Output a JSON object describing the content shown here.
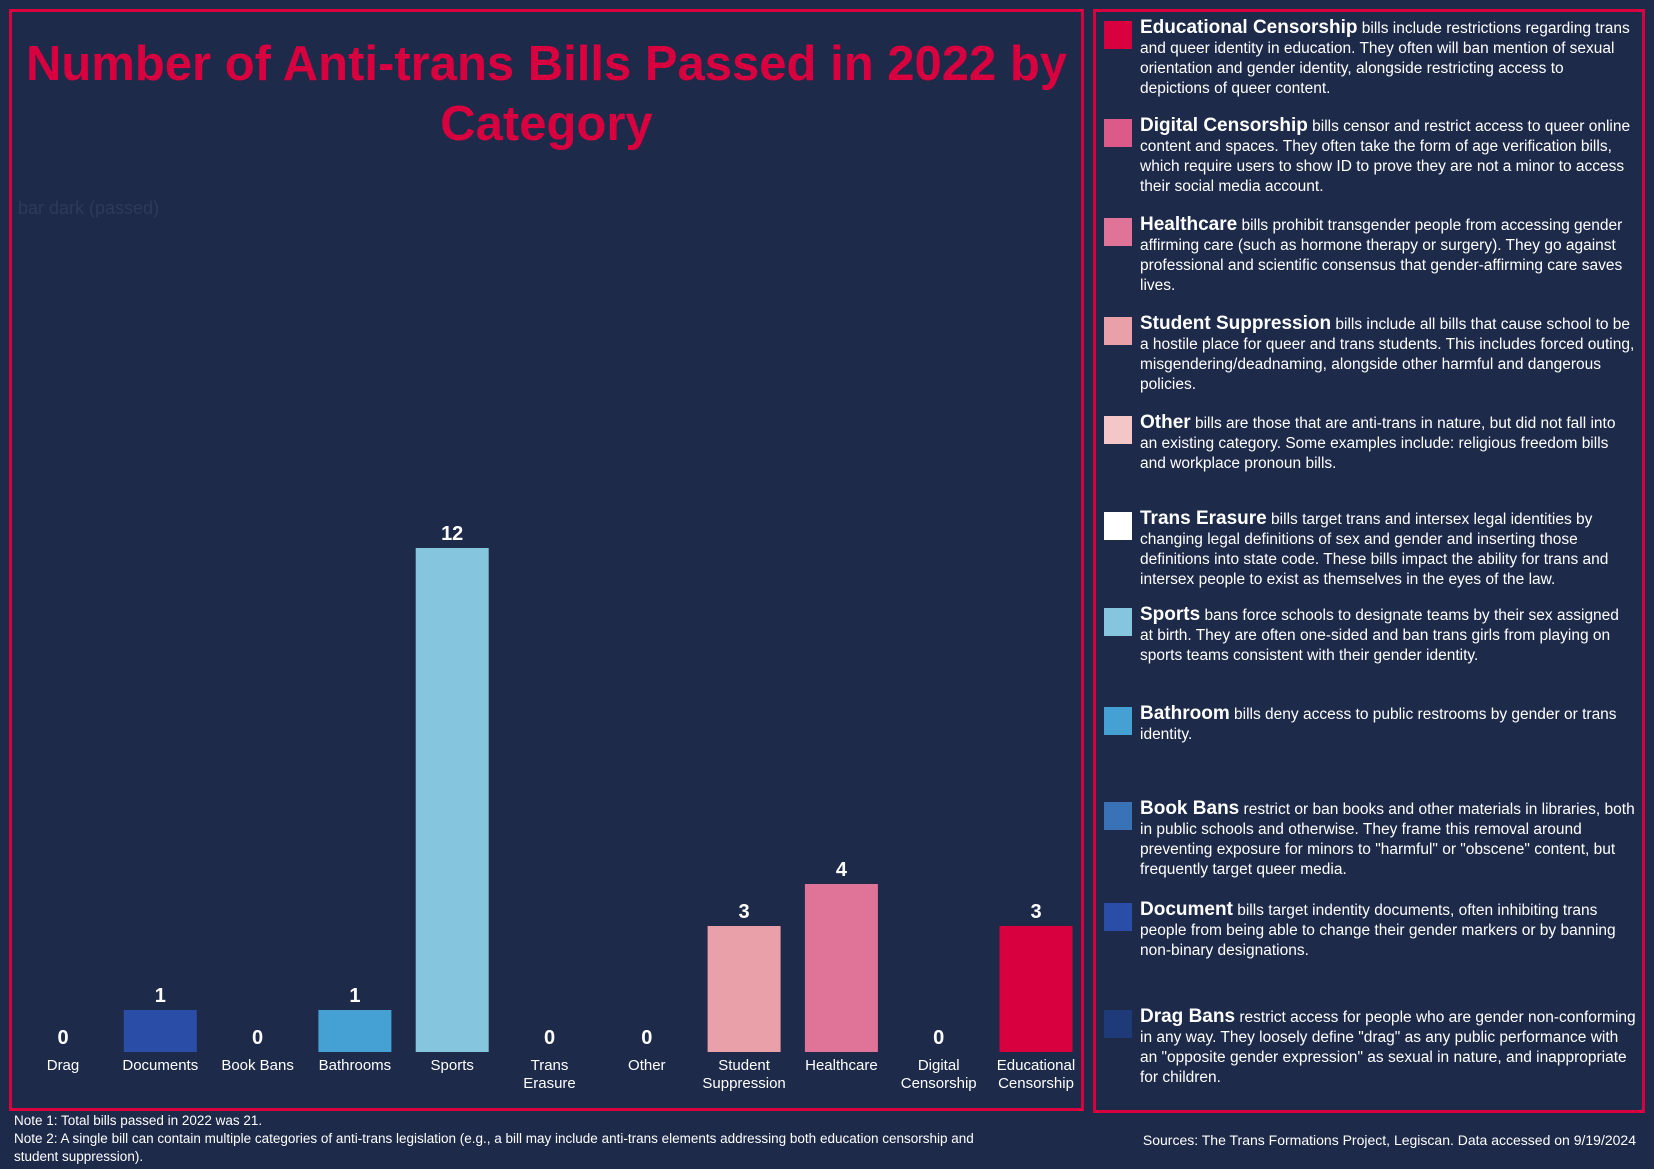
{
  "chart_data": {
    "type": "bar",
    "title": "Number of Anti-trans Bills Passed in 2022 by Category",
    "series_label": "bar dark (passed)",
    "categories": [
      "Drag",
      "Documents",
      "Book Bans",
      "Bathrooms",
      "Sports",
      "Trans Erasure",
      "Other",
      "Student Suppression",
      "Healthcare",
      "Digital Censorship",
      "Educational Censorship"
    ],
    "category_lines": [
      [
        "Drag"
      ],
      [
        "Documents"
      ],
      [
        "Book Bans"
      ],
      [
        "Bathrooms"
      ],
      [
        "Sports"
      ],
      [
        "Trans",
        "Erasure"
      ],
      [
        "Other"
      ],
      [
        "Student",
        "Suppression"
      ],
      [
        "Healthcare"
      ],
      [
        "Digital",
        "Censorship"
      ],
      [
        "Educational",
        "Censorship"
      ]
    ],
    "values": [
      0,
      1,
      0,
      1,
      12,
      0,
      0,
      3,
      4,
      0,
      3
    ],
    "colors": [
      "#1e3a78",
      "#2a4ea8",
      "#3a72b8",
      "#45a0d4",
      "#85c6de",
      "#ffffff",
      "#f4c6c8",
      "#eaa0a8",
      "#df7498",
      "#db5a87",
      "#d8003f"
    ],
    "ylim": [
      0,
      12
    ],
    "xlabel": "",
    "ylabel": "",
    "grid": false
  },
  "legend": [
    {
      "name": "Educational Censorship",
      "color": "#d8003f",
      "text": "bills include restrictions regarding trans and queer identity in education.  They often will ban mention of sexual orientation and gender identity, alongside restricting access to depictions of queer content."
    },
    {
      "name": "Digital Censorship",
      "color": "#db5a87",
      "text": "bills censor and restrict access to queer online content and spaces.  They often take the form of age verification bills, which require users to show ID to prove they are not a minor to access their social media account."
    },
    {
      "name": "Healthcare",
      "color": "#df7498",
      "text": "bills prohibit transgender people from accessing gender affirming care (such as hormone therapy or surgery).  They go against professional and scientific consensus that gender-affirming care saves lives."
    },
    {
      "name": "Student Suppression",
      "color": "#eaa0a8",
      "text": "bills include all bills that cause school to be a hostile place for queer and trans students.  This includes forced outing, misgendering/deadnaming, alongside other harmful and dangerous policies."
    },
    {
      "name": "Other",
      "color": "#f4c6c8",
      "text": "bills are those that are anti-trans in nature, but did not fall into an existing category.  Some examples include: religious freedom bills and workplace pronoun bills."
    },
    {
      "name": "Trans Erasure",
      "color": "#ffffff",
      "text": "bills target trans and intersex legal identities by changing legal definitions of sex and gender and inserting those definitions into state code.  These bills impact the ability for trans and intersex people to exist as themselves in the eyes of the law."
    },
    {
      "name": "Sports",
      "color": "#85c6de",
      "text": "bans force schools to designate teams by their sex assigned at birth.  They are often one-sided and ban trans girls from playing on sports teams consistent with their gender identity."
    },
    {
      "name": "Bathroom",
      "color": "#45a0d4",
      "text": "bills deny access to public restrooms by gender or trans identity."
    },
    {
      "name": "Book Bans",
      "color": "#3a72b8",
      "text": "restrict or ban books and other materials in libraries, both in public schools and otherwise.  They frame this removal around preventing exposure for minors to \"harmful\" or \"obscene\" content, but frequently target queer media."
    },
    {
      "name": "Document",
      "color": "#2a4ea8",
      "text": "bills target indentity documents, often inhibiting trans people from being able to change their gender markers or by banning non-binary designations."
    },
    {
      "name": "Drag Bans",
      "color": "#1e3a78",
      "text": "restrict access for people who are gender non-conforming in any way.  They loosely define \"drag\" as any public performance with an \"opposite gender expression\" as sexual in nature, and inappropriate for children."
    }
  ],
  "notes": {
    "note1": "Note 1: Total bills passed in 2022 was 21.",
    "note2": "Note 2: A single bill can contain multiple categories of anti-trans legislation (e.g., a bill may include anti-trans elements addressing both education censorship and student suppression)."
  },
  "sources": "Sources: The Trans Formations Project, Legiscan.  Data accessed on 9/19/2024"
}
